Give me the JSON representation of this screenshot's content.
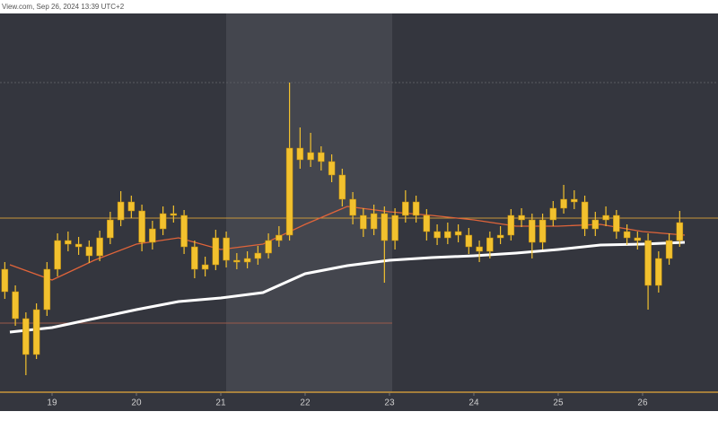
{
  "chart_data": {
    "type": "candlestick",
    "header": "View.com, Sep 26, 2024 13:39 UTC+2",
    "x": [
      18.44,
      18.565,
      18.69,
      18.815,
      18.94,
      19.065,
      19.19,
      19.315,
      19.44,
      19.565,
      19.69,
      19.815,
      19.94,
      20.065,
      20.19,
      20.315,
      20.44,
      20.565,
      20.69,
      20.815,
      20.94,
      21.065,
      21.19,
      21.315,
      21.44,
      21.565,
      21.69,
      21.815,
      21.94,
      22.065,
      22.19,
      22.315,
      22.44,
      22.565,
      22.69,
      22.815,
      22.94,
      23.065,
      23.19,
      23.315,
      23.44,
      23.565,
      23.69,
      23.815,
      23.94,
      24.065,
      24.19,
      24.315,
      24.44,
      24.565,
      24.69,
      24.815,
      24.94,
      25.065,
      25.19,
      25.315,
      25.44,
      25.565,
      25.69,
      25.815,
      25.94,
      26.065,
      26.19,
      26.315,
      26.44
    ],
    "open": [
      138,
      113,
      83,
      43,
      93,
      138,
      170,
      166,
      163,
      153,
      173,
      193,
      213,
      203,
      168,
      183,
      200,
      198,
      163,
      138,
      143,
      173,
      148,
      146,
      150,
      156,
      170,
      176,
      273,
      260,
      268,
      258,
      243,
      216,
      198,
      183,
      200,
      170,
      198,
      213,
      198,
      180,
      173,
      180,
      176,
      163,
      158,
      173,
      176,
      198,
      193,
      168,
      193,
      206,
      216,
      213,
      183,
      193,
      198,
      180,
      173,
      170,
      120,
      150,
      170
    ],
    "high": [
      146,
      120,
      90,
      100,
      146,
      178,
      180,
      174,
      170,
      181,
      202,
      225,
      220,
      210,
      192,
      208,
      209,
      204,
      170,
      152,
      182,
      180,
      156,
      158,
      164,
      178,
      186,
      346,
      296,
      290,
      275,
      266,
      250,
      224,
      206,
      210,
      208,
      206,
      226,
      220,
      205,
      188,
      190,
      188,
      184,
      170,
      180,
      186,
      205,
      206,
      200,
      200,
      214,
      232,
      226,
      220,
      202,
      208,
      204,
      188,
      180,
      178,
      158,
      178,
      203
    ],
    "low": [
      105,
      75,
      20,
      38,
      86,
      130,
      158,
      154,
      145,
      147,
      166,
      186,
      195,
      158,
      160,
      176,
      190,
      155,
      128,
      130,
      137,
      140,
      138,
      139,
      143,
      150,
      163,
      170,
      250,
      252,
      248,
      235,
      208,
      188,
      174,
      176,
      123,
      160,
      190,
      190,
      170,
      165,
      166,
      168,
      155,
      146,
      150,
      166,
      170,
      185,
      150,
      160,
      186,
      200,
      205,
      175,
      175,
      186,
      172,
      165,
      160,
      93,
      112,
      143,
      163
    ],
    "close": [
      113,
      83,
      43,
      93,
      138,
      170,
      166,
      163,
      153,
      173,
      193,
      213,
      203,
      168,
      183,
      200,
      198,
      163,
      138,
      143,
      173,
      148,
      146,
      150,
      156,
      170,
      176,
      273,
      260,
      268,
      258,
      243,
      216,
      198,
      183,
      200,
      170,
      198,
      213,
      198,
      180,
      173,
      180,
      176,
      163,
      158,
      173,
      176,
      198,
      193,
      168,
      193,
      206,
      216,
      213,
      183,
      193,
      198,
      180,
      173,
      170,
      120,
      150,
      170,
      190
    ],
    "color": "#f2c12e",
    "series": [
      {
        "color": "#e0643a",
        "x": [
          18.5,
          19,
          19.5,
          20,
          20.5,
          21,
          21.5,
          22,
          22.5,
          23,
          23.5,
          24,
          24.5,
          25,
          25.5,
          26,
          26.5
        ],
        "values": [
          143,
          126,
          148,
          166,
          173,
          160,
          166,
          188,
          208,
          202,
          198,
          193,
          186,
          186,
          188,
          180,
          176
        ]
      },
      {
        "color": "#ffffff",
        "x": [
          18.5,
          19,
          19.5,
          20,
          20.5,
          21,
          21.5,
          22,
          22.5,
          23,
          23.5,
          24,
          24.5,
          25,
          25.5,
          26,
          26.5
        ],
        "values": [
          68,
          73,
          83,
          93,
          102,
          106,
          112,
          133,
          142,
          148,
          151,
          153,
          156,
          160,
          165,
          166,
          168
        ]
      }
    ],
    "xlim": [
      18.383,
      26.894
    ],
    "ylim": [
      0,
      423
    ],
    "xticks": [
      19,
      20,
      21,
      22,
      23,
      24,
      25,
      26
    ]
  }
}
